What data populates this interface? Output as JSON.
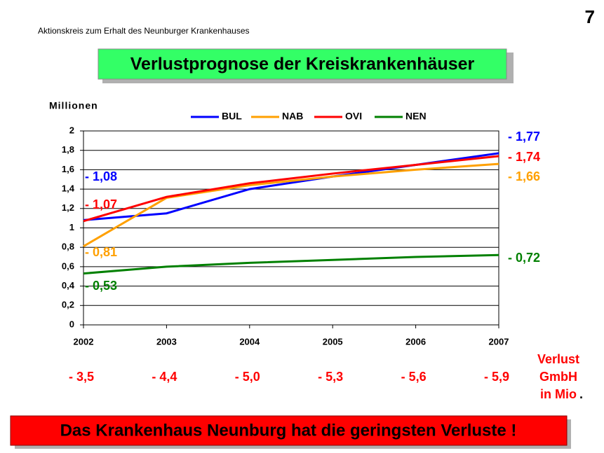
{
  "header": "Aktionskreis zum Erhalt des Neunburger Krankenhauses",
  "page_number": "7",
  "chart_data": {
    "type": "line",
    "title": "Verlustprognose der Kreiskrankenhäuser",
    "y_label": "Millionen",
    "categories": [
      "2002",
      "2003",
      "2004",
      "2005",
      "2006",
      "2007"
    ],
    "series": [
      {
        "name": "BUL",
        "color": "#0000ff",
        "values": [
          1.08,
          1.15,
          1.4,
          1.53,
          1.65,
          1.77
        ],
        "value_labels": [
          "- 1,08",
          null,
          null,
          null,
          null,
          "- 1,77"
        ]
      },
      {
        "name": "NAB",
        "color": "#ffa000",
        "values": [
          0.81,
          1.31,
          1.44,
          1.53,
          1.6,
          1.66
        ],
        "value_labels": [
          "- 0,81",
          null,
          null,
          null,
          null,
          "- 1,66"
        ]
      },
      {
        "name": "OVI",
        "color": "#ff0000",
        "values": [
          1.07,
          1.32,
          1.46,
          1.56,
          1.65,
          1.74
        ],
        "value_labels": [
          "- 1,07",
          null,
          null,
          null,
          null,
          "- 1,74"
        ]
      },
      {
        "name": "NEN",
        "color": "#008000",
        "values": [
          0.53,
          0.6,
          0.64,
          0.67,
          0.7,
          0.72
        ],
        "value_labels": [
          "- 0,53",
          null,
          null,
          null,
          null,
          "- 0,72"
        ]
      }
    ],
    "ylim": [
      0,
      2
    ],
    "yticks": [
      0,
      {
        "value": 0.2,
        "label": "0,2"
      },
      {
        "value": 0.4,
        "label": "0,4"
      },
      {
        "value": 0.6,
        "label": "0,6"
      },
      {
        "value": 0.8,
        "label": "0,8"
      },
      1,
      {
        "value": 1.2,
        "label": "1,2"
      },
      {
        "value": 1.4,
        "label": "1,4"
      },
      {
        "value": 1.6,
        "label": "1,6"
      },
      {
        "value": 1.8,
        "label": "1,8"
      },
      2
    ],
    "grid": true
  },
  "loss_row": {
    "labels": [
      "- 3,5",
      "- 4,4",
      "- 5,0",
      "- 5,3",
      "- 5,6",
      "- 5,9"
    ],
    "caption": [
      "Verlust",
      "GmbH",
      "in Mio"
    ],
    "caption_end": "."
  },
  "footer": "Das Krankenhaus Neunburg hat die geringsten Verluste !"
}
